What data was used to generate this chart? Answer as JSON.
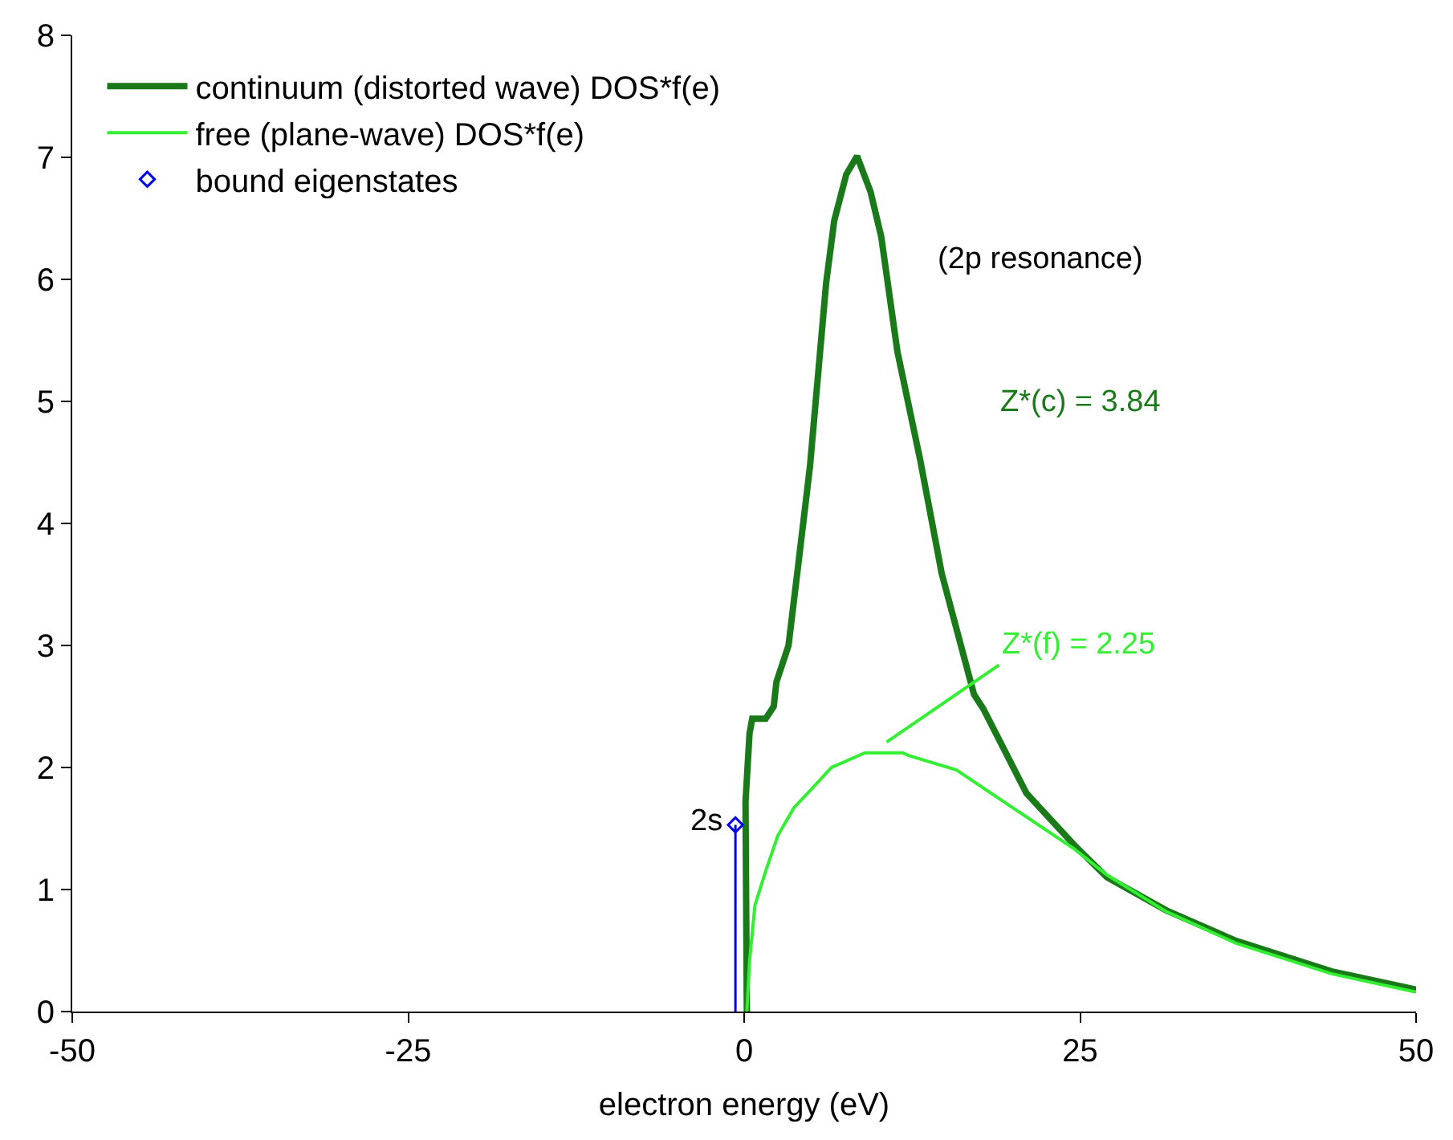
{
  "chart_data": {
    "type": "line",
    "xlabel": "electron energy (eV)",
    "xlim": [
      -50,
      50
    ],
    "xticks": [
      -50,
      -25,
      0,
      25,
      50
    ],
    "ylim": [
      0,
      8
    ],
    "yticks": [
      0,
      1,
      2,
      3,
      4,
      5,
      6,
      7,
      8
    ],
    "legend": "top left",
    "line_style": "solid",
    "marker": "none",
    "series": [
      {
        "name": "continuum (distorted wave) DOS*f(e)",
        "color": "#1a7a1a",
        "x": [
          0.2,
          0.1,
          0.4,
          0.6,
          1.6,
          2.2,
          2.4,
          3.3,
          4.1,
          4.9,
          6.1,
          6.7,
          7.6,
          8.4,
          9.4,
          10.2,
          11.4,
          13.1,
          14.7,
          17.1,
          17.8,
          21.0,
          24.6,
          27.0,
          31.4,
          36.6,
          43.7,
          50
        ],
        "values": [
          0,
          1.72,
          2.28,
          2.4,
          2.4,
          2.5,
          2.7,
          3.0,
          3.73,
          4.47,
          5.97,
          6.48,
          6.86,
          7.01,
          6.72,
          6.35,
          5.41,
          4.52,
          3.59,
          2.6,
          2.48,
          1.79,
          1.36,
          1.1,
          0.83,
          0.58,
          0.33,
          0.18
        ]
      },
      {
        "name": "free (plane-wave) DOS*f(e)",
        "color": "#33ee33",
        "x": [
          0.2,
          0.4,
          0.8,
          1.6,
          2.5,
          3.7,
          4.9,
          6.5,
          9.0,
          11.8,
          12.2,
          15.8,
          24.6,
          27.0,
          31.4,
          36.6,
          43.7,
          50
        ],
        "values": [
          0,
          0.41,
          0.87,
          1.15,
          1.44,
          1.67,
          1.81,
          2.0,
          2.12,
          2.12,
          2.1,
          1.98,
          1.33,
          1.12,
          0.82,
          0.56,
          0.31,
          0.16
        ]
      },
      {
        "name": "bound eigenstates",
        "type": "lollipop",
        "color": "#0000ee",
        "marker": "diamond",
        "x": [
          -0.65
        ],
        "values": [
          1.53
        ]
      }
    ],
    "annotations": [
      {
        "text": "2s",
        "x": -0.65,
        "y": 1.53
      },
      "(2p resonance)",
      "Z*(c) = 3.84",
      "Z*(f) = 2.25"
    ]
  }
}
